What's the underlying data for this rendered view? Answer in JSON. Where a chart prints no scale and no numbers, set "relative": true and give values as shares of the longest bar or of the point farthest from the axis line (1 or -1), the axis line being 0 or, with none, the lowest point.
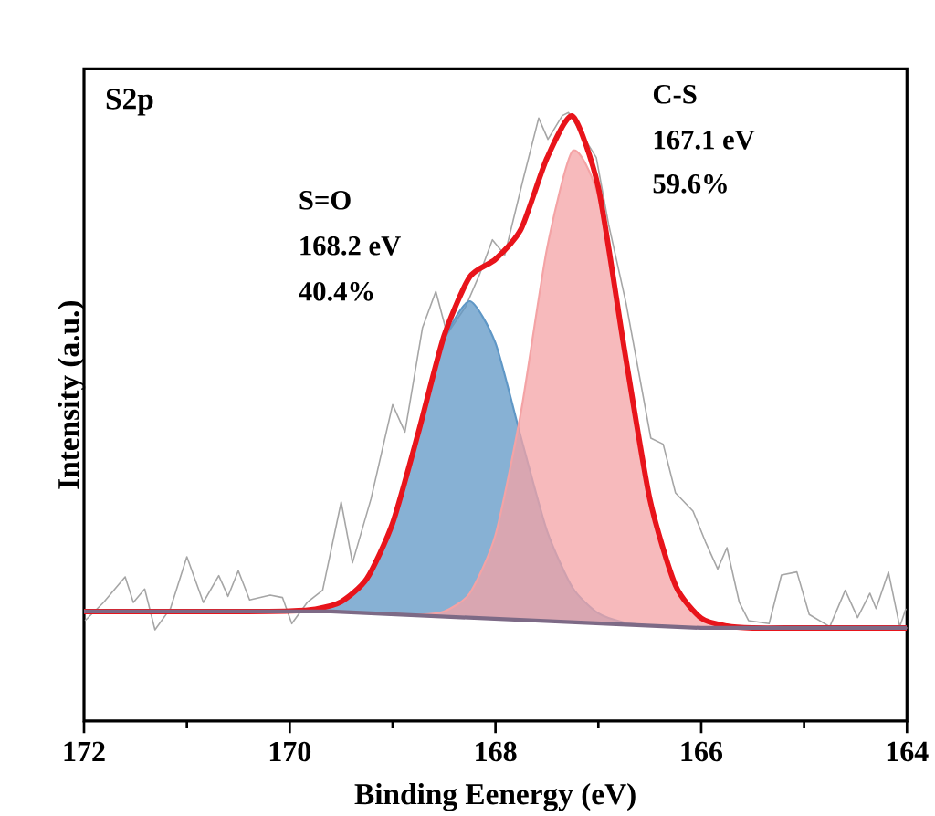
{
  "chart_data": {
    "type": "line",
    "title": "S2p",
    "xlabel": "Binding Eenergy (eV)",
    "ylabel": "Intensity (a.u.)",
    "xlim": [
      172,
      164
    ],
    "xticks": [
      172,
      170,
      168,
      166,
      164
    ],
    "relative": true,
    "grid": false,
    "annotations": [
      "S=O",
      "168.2 eV",
      "40.4%",
      "C-S",
      "167.1 eV",
      "59.6%"
    ],
    "series": [
      {
        "color": "#a6a6a6",
        "x": [
          171.99,
          171.81,
          171.6,
          171.52,
          171.41,
          171.31,
          171.16,
          171.0,
          170.84,
          170.69,
          170.6,
          170.5,
          170.39,
          170.19,
          170.07,
          169.98,
          169.83,
          169.68,
          169.5,
          169.39,
          169.21,
          169.0,
          168.88,
          168.71,
          168.58,
          168.47,
          168.29,
          168.15,
          168.03,
          167.91,
          167.73,
          167.58,
          167.49,
          167.35,
          167.29,
          167.02,
          166.9,
          166.73,
          166.49,
          166.37,
          166.25,
          166.08,
          165.96,
          165.84,
          165.75,
          165.63,
          165.54,
          165.34,
          165.22,
          165.07,
          164.95,
          164.75,
          164.6,
          164.48,
          164.36,
          164.3,
          164.18,
          164.07,
          164.01
        ],
        "values": [
          0.165,
          0.195,
          0.237,
          0.195,
          0.217,
          0.15,
          0.185,
          0.27,
          0.195,
          0.239,
          0.205,
          0.247,
          0.199,
          0.207,
          0.203,
          0.16,
          0.195,
          0.215,
          0.36,
          0.26,
          0.365,
          0.52,
          0.475,
          0.646,
          0.706,
          0.636,
          0.681,
          0.736,
          0.791,
          0.766,
          0.891,
          0.991,
          0.956,
          0.995,
          1.0,
          0.926,
          0.816,
          0.686,
          0.465,
          0.455,
          0.375,
          0.345,
          0.295,
          0.25,
          0.285,
          0.195,
          0.165,
          0.16,
          0.24,
          0.245,
          0.175,
          0.155,
          0.215,
          0.17,
          0.21,
          0.185,
          0.245,
          0.155,
          0.185
        ]
      },
      {
        "color": "#7d6a86",
        "x": [
          172,
          169.6,
          166,
          164
        ],
        "values": [
          0.18,
          0.18,
          0.153,
          0.153
        ]
      },
      {
        "type": "area",
        "color": "#5f97c6",
        "x": [
          172,
          170.5,
          170,
          169.75,
          169.5,
          169.25,
          169,
          168.75,
          168.5,
          168.25,
          168,
          167.75,
          167.5,
          167.25,
          167,
          166.75,
          166.5,
          166.25,
          166,
          165,
          164
        ],
        "values": [
          0.18,
          0.18,
          0.181,
          0.184,
          0.196,
          0.234,
          0.325,
          0.473,
          0.625,
          0.69,
          0.621,
          0.465,
          0.313,
          0.219,
          0.177,
          0.162,
          0.157,
          0.155,
          0.153,
          0.153,
          0.153
        ]
      },
      {
        "type": "area",
        "color": "#f4a3a5",
        "x": [
          172,
          170.5,
          170,
          169.75,
          169.5,
          169.25,
          169,
          168.75,
          168.5,
          168.25,
          168,
          167.75,
          167.5,
          167.25,
          167,
          166.75,
          166.5,
          166.25,
          166,
          165.75,
          165.5,
          165,
          164
        ],
        "values": [
          0.18,
          0.18,
          0.18,
          0.18,
          0.18,
          0.177,
          0.176,
          0.175,
          0.18,
          0.21,
          0.306,
          0.51,
          0.776,
          0.937,
          0.861,
          0.611,
          0.364,
          0.223,
          0.169,
          0.156,
          0.153,
          0.153,
          0.153
        ]
      },
      {
        "color": "#e8141b",
        "x": [
          172,
          170.5,
          170,
          169.75,
          169.5,
          169.25,
          169,
          168.75,
          168.5,
          168.25,
          168,
          167.75,
          167.5,
          167.25,
          167,
          166.75,
          166.5,
          166.25,
          166,
          165.75,
          165.5,
          165,
          164
        ],
        "values": [
          0.18,
          0.18,
          0.181,
          0.184,
          0.196,
          0.234,
          0.325,
          0.474,
          0.633,
          0.73,
          0.759,
          0.809,
          0.925,
          0.994,
          0.877,
          0.614,
          0.365,
          0.223,
          0.169,
          0.156,
          0.153,
          0.153,
          0.153
        ]
      }
    ]
  }
}
